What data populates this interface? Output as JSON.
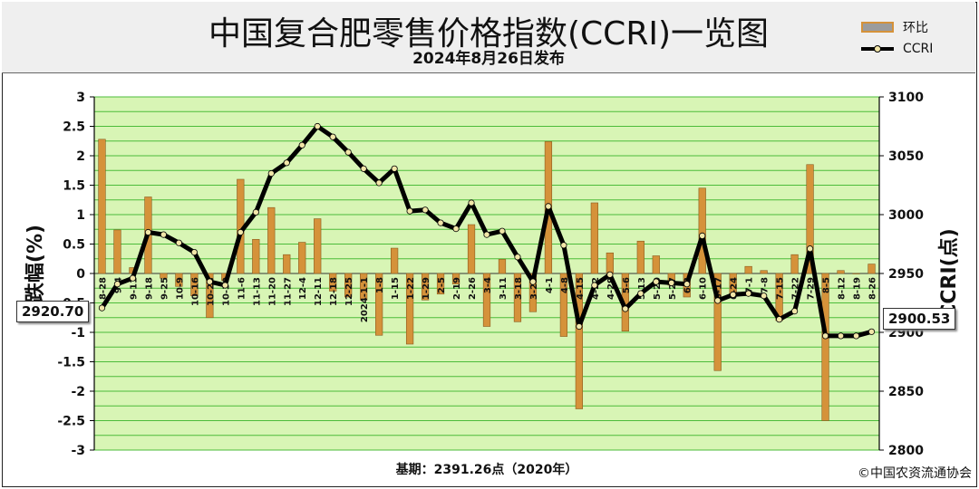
{
  "header": {
    "title": "中国复合肥零售价格指数(CCRI)一览图",
    "subtitle": "2024年8月26日发布"
  },
  "legend": {
    "bar_label": "环比",
    "line_label": "CCRI"
  },
  "footer": {
    "base": "基期：2391.26点（2020年）",
    "copyright": "©中国农资流通协会"
  },
  "callouts": {
    "start": "2920.70",
    "end": "2900.53"
  },
  "colors": {
    "plot_bg": "#d8f5b5",
    "grid": "#4cbc3a",
    "bar_fill": "#d5923a",
    "line": "#000000",
    "marker": "#f2e6a8"
  },
  "chart_data": {
    "type": "bar+line",
    "ylabel_left": "涨跌幅(%)",
    "ylabel_right": "CCRI(点)",
    "ylim_left": [
      -3,
      3
    ],
    "yticks_left": [
      3,
      2.5,
      2,
      1.5,
      1,
      0.5,
      0,
      -0.5,
      -1,
      -1.5,
      -2,
      -2.5,
      -3
    ],
    "ylim_right": [
      2800,
      3100
    ],
    "yticks_right": [
      3100,
      3050,
      3000,
      2950,
      2900,
      2850,
      2800
    ],
    "grid": true,
    "categories": [
      "8-28",
      "9-4",
      "9-11",
      "9-18",
      "9-25",
      "10-9",
      "10-16",
      "10-23",
      "10-30",
      "11-6",
      "11-13",
      "11-20",
      "11-27",
      "12-4",
      "12-11",
      "12-18",
      "12-25",
      "2024-1-1",
      "1-8",
      "1-15",
      "1-22",
      "1-29",
      "2-5",
      "2-19",
      "2-26",
      "3-4",
      "3-11",
      "3-18",
      "3-25",
      "4-1",
      "4-8",
      "4-15",
      "4-22",
      "4-29",
      "5-6",
      "5-13",
      "5-20",
      "5-27",
      "6-3",
      "6-10",
      "6-17",
      "6-24",
      "7-1",
      "7-8",
      "7-15",
      "7-22",
      "7-29",
      "8-5",
      "8-12",
      "8-19",
      "8-26"
    ],
    "series": [
      {
        "name": "环比",
        "type": "bar",
        "values": [
          2.28,
          0.74,
          0.1,
          1.3,
          -0.08,
          -0.22,
          -0.38,
          -0.75,
          -0.12,
          1.6,
          0.58,
          1.12,
          0.32,
          0.53,
          0.93,
          -0.3,
          -0.4,
          -0.45,
          -1.05,
          0.43,
          -1.2,
          -0.45,
          -0.35,
          -0.18,
          0.83,
          -0.9,
          0.24,
          -0.82,
          -0.65,
          2.24,
          -1.07,
          -2.3,
          1.2,
          0.35,
          -0.98,
          0.55,
          0.3,
          -0.2,
          -0.4,
          1.45,
          -1.65,
          -0.38,
          0.12,
          0.05,
          -0.8,
          0.32,
          1.85,
          -2.5,
          0.05,
          0.0,
          0.16
        ]
      },
      {
        "name": "CCRI",
        "type": "line",
        "values": [
          2920.7,
          2941,
          2946,
          2985,
          2983,
          2976,
          2968,
          2943,
          2940,
          2985,
          3002,
          3035,
          3044,
          3059,
          3075,
          3066,
          3053,
          3039,
          3027,
          3039,
          3003,
          3004,
          2993,
          2988,
          3010,
          2983,
          2986,
          2964,
          2943,
          3007,
          2974,
          2905,
          2940,
          2949,
          2920,
          2933,
          2943,
          2942,
          2941,
          2982,
          2927,
          2932,
          2933,
          2931,
          2911,
          2918,
          2971,
          2897,
          2897,
          2897,
          2900.53
        ]
      }
    ]
  }
}
